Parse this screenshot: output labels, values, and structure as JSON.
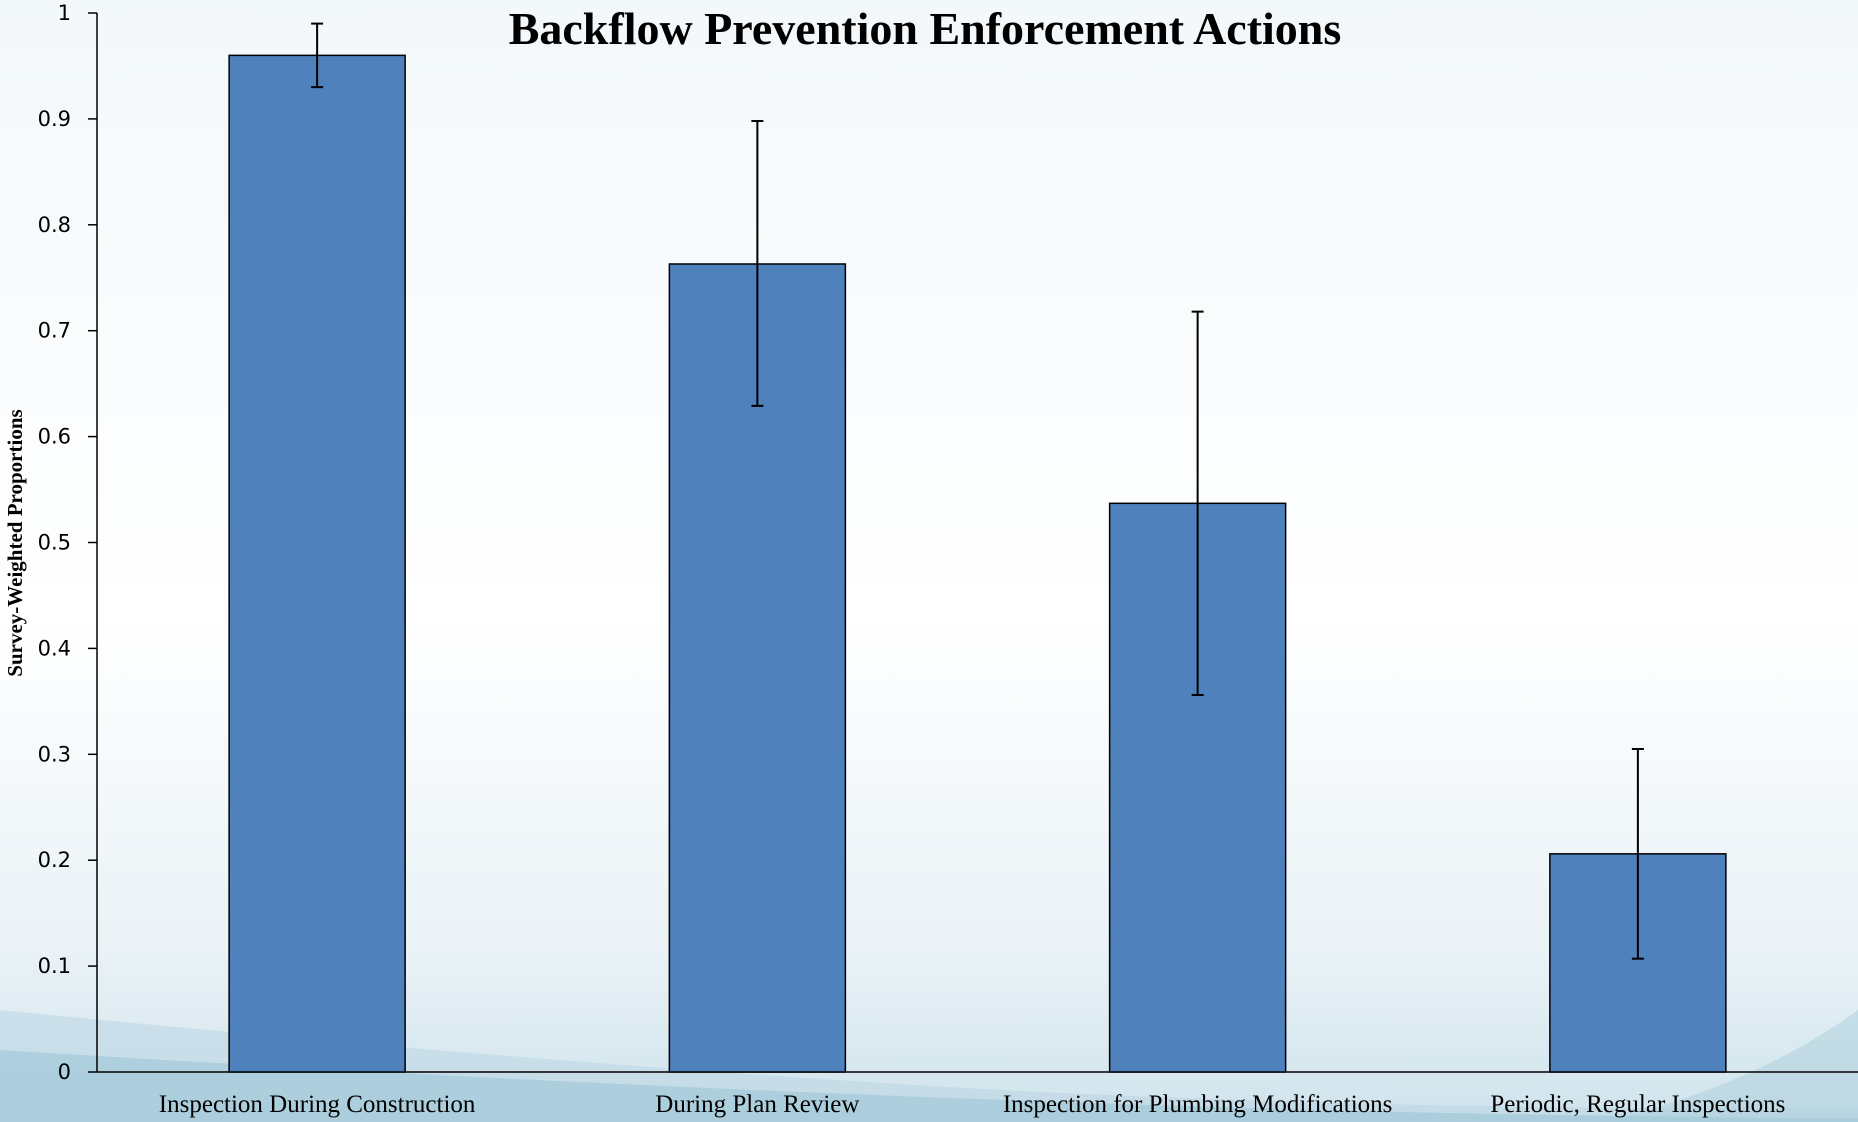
{
  "chart_data": {
    "type": "bar",
    "title": "Backflow Prevention Enforcement Actions",
    "xlabel": "",
    "ylabel": "Survey-Weighted Proportions",
    "categories": [
      "Inspection During Construction",
      "During Plan Review",
      "Inspection for Plumbing Modifications",
      "Periodic, Regular Inspections"
    ],
    "values": [
      0.96,
      0.763,
      0.537,
      0.206
    ],
    "error_low": [
      0.93,
      0.629,
      0.356,
      0.107
    ],
    "error_high": [
      0.99,
      0.898,
      0.718,
      0.305
    ],
    "ylim": [
      0,
      1
    ],
    "yticks": [
      "0",
      "0.1",
      "0.2",
      "0.3",
      "0.4",
      "0.5",
      "0.6",
      "0.7",
      "0.8",
      "0.9",
      "1"
    ],
    "grid": false,
    "legend": "none",
    "colors": {
      "bar": "#4f81bd",
      "bar_edge": "#000000",
      "error_bar": "#000000"
    }
  }
}
